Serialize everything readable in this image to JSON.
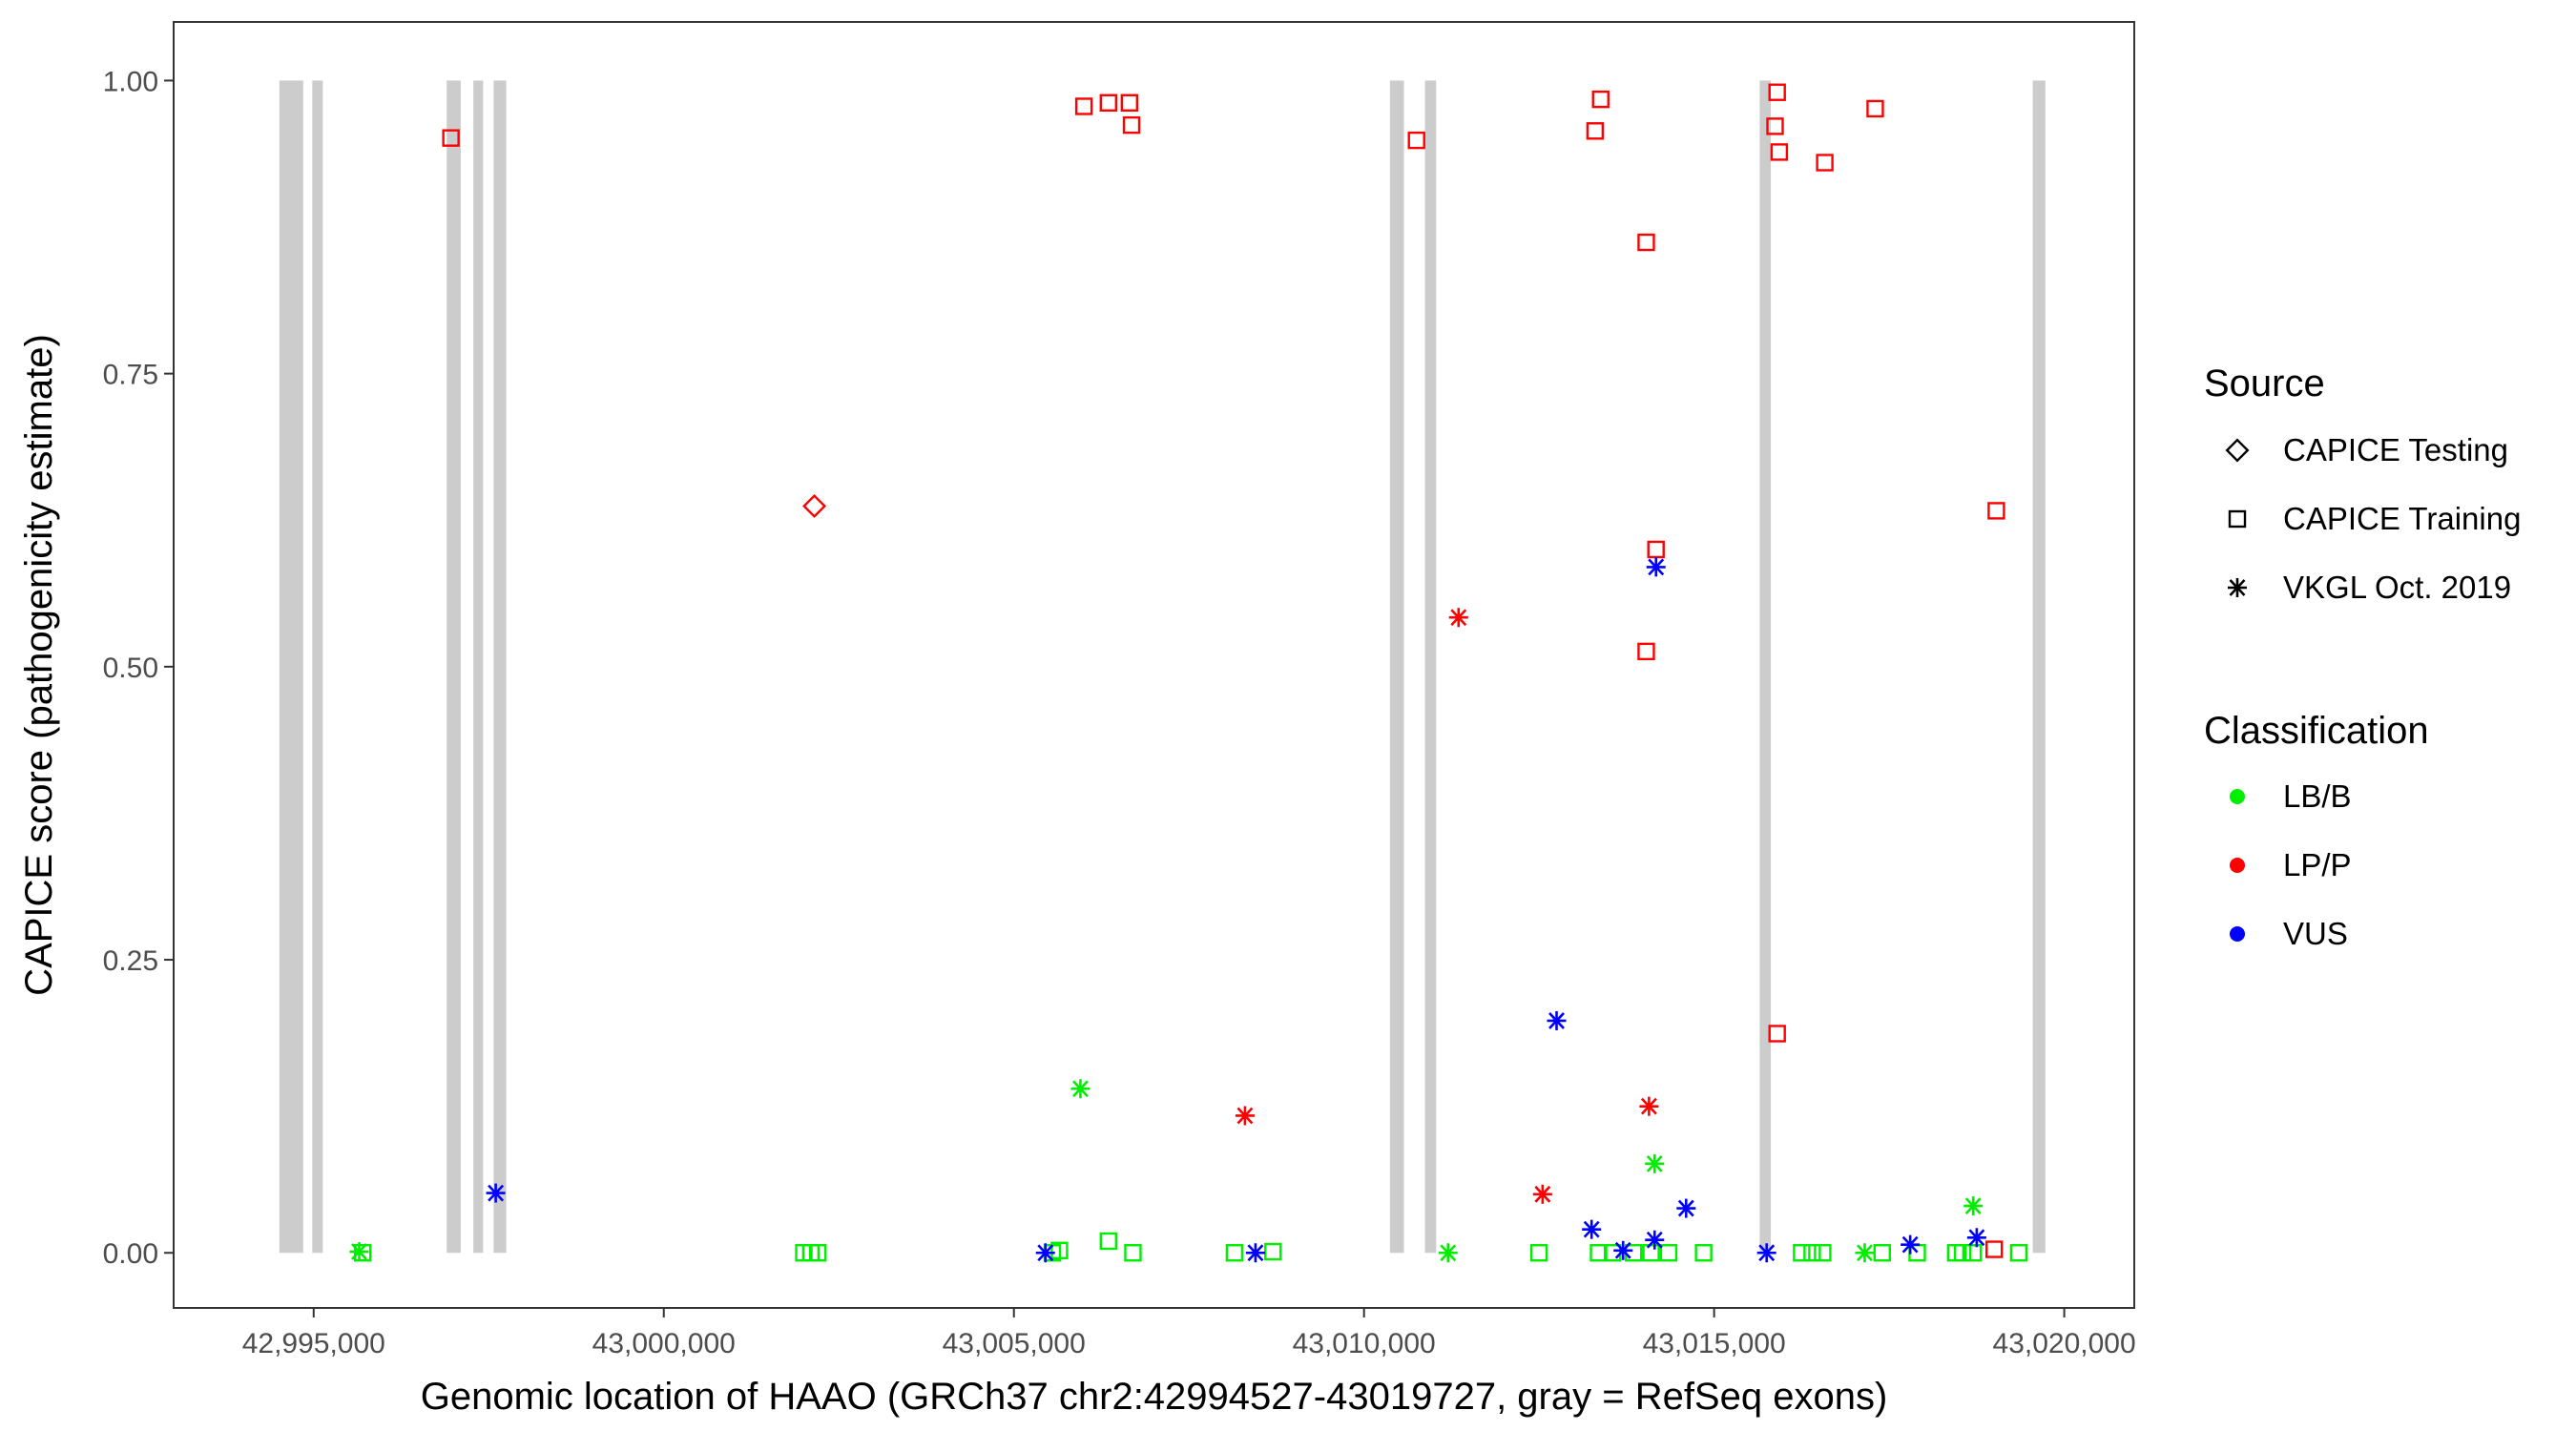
{
  "chart_data": {
    "type": "scatter",
    "title": "",
    "xlabel": "Genomic location of HAAO (GRCh37 chr2:42994527-43019727, gray = RefSeq exons)",
    "ylabel": "CAPICE score (pathogenicity estimate)",
    "xlim": [
      42993000,
      43021000
    ],
    "ylim": [
      -0.047,
      1.05
    ],
    "x_ticks": [
      42995000,
      43000000,
      43005000,
      43010000,
      43015000,
      43020000
    ],
    "x_tick_labels": [
      "42,995,000",
      "43,000,000",
      "43,005,000",
      "43,010,000",
      "43,015,000",
      "43,020,000"
    ],
    "y_ticks": [
      0,
      0.25,
      0.5,
      0.75,
      1.0
    ],
    "y_tick_labels": [
      "0.00",
      "0.25",
      "0.50",
      "0.75",
      "1.00"
    ],
    "grid": false,
    "exon_color": "#cccccc",
    "exons": [
      [
        42994510,
        42994850
      ],
      [
        42994980,
        42995130
      ],
      [
        42996900,
        42997100
      ],
      [
        42997280,
        42997420
      ],
      [
        42997570,
        42997750
      ],
      [
        43010370,
        43010570
      ],
      [
        43010870,
        43011030
      ],
      [
        43015650,
        43015810
      ],
      [
        43019550,
        43019730
      ]
    ],
    "legend": {
      "position": "right",
      "source_title": "Source",
      "source_items": [
        {
          "label": "CAPICE Testing",
          "shape": "diamond"
        },
        {
          "label": "CAPICE Training",
          "shape": "square"
        },
        {
          "label": "VKGL Oct. 2019",
          "shape": "asterisk"
        }
      ],
      "class_title": "Classification",
      "class_items": [
        {
          "label": "LB/B",
          "color": "#00ee00"
        },
        {
          "label": "LP/P",
          "color": "#ff0000"
        },
        {
          "label": "VUS",
          "color": "#0000ff"
        }
      ]
    },
    "colors": {
      "LB/B": "#00ee00",
      "LP/P": "#ff0000",
      "VUS": "#0000ff"
    },
    "points": [
      {
        "x": 43002150,
        "y": 0.637,
        "shape": "diamond",
        "cls": "LP/P"
      },
      {
        "x": 42996960,
        "y": 0.951,
        "shape": "square",
        "cls": "LP/P"
      },
      {
        "x": 43006000,
        "y": 0.978,
        "shape": "square",
        "cls": "LP/P"
      },
      {
        "x": 43006350,
        "y": 0.981,
        "shape": "square",
        "cls": "LP/P"
      },
      {
        "x": 43006650,
        "y": 0.981,
        "shape": "square",
        "cls": "LP/P"
      },
      {
        "x": 43006680,
        "y": 0.962,
        "shape": "square",
        "cls": "LP/P"
      },
      {
        "x": 43010750,
        "y": 0.949,
        "shape": "square",
        "cls": "LP/P"
      },
      {
        "x": 43013300,
        "y": 0.957,
        "shape": "square",
        "cls": "LP/P"
      },
      {
        "x": 43013380,
        "y": 0.984,
        "shape": "square",
        "cls": "LP/P"
      },
      {
        "x": 43014030,
        "y": 0.862,
        "shape": "square",
        "cls": "LP/P"
      },
      {
        "x": 43014170,
        "y": 0.6,
        "shape": "square",
        "cls": "LP/P"
      },
      {
        "x": 43014030,
        "y": 0.513,
        "shape": "square",
        "cls": "LP/P"
      },
      {
        "x": 43015900,
        "y": 0.99,
        "shape": "square",
        "cls": "LP/P"
      },
      {
        "x": 43015870,
        "y": 0.961,
        "shape": "square",
        "cls": "LP/P"
      },
      {
        "x": 43015930,
        "y": 0.939,
        "shape": "square",
        "cls": "LP/P"
      },
      {
        "x": 43016580,
        "y": 0.93,
        "shape": "square",
        "cls": "LP/P"
      },
      {
        "x": 43017300,
        "y": 0.976,
        "shape": "square",
        "cls": "LP/P"
      },
      {
        "x": 43015900,
        "y": 0.187,
        "shape": "square",
        "cls": "LP/P"
      },
      {
        "x": 43019030,
        "y": 0.633,
        "shape": "square",
        "cls": "LP/P"
      },
      {
        "x": 43019000,
        "y": 0.003,
        "shape": "square",
        "cls": "LP/P"
      },
      {
        "x": 42995700,
        "y": 0.0,
        "shape": "square",
        "cls": "LB/B"
      },
      {
        "x": 43002000,
        "y": 0.0,
        "shape": "square",
        "cls": "LB/B"
      },
      {
        "x": 43002100,
        "y": 0.0,
        "shape": "square",
        "cls": "LB/B"
      },
      {
        "x": 43002200,
        "y": 0.0,
        "shape": "square",
        "cls": "LB/B"
      },
      {
        "x": 43005550,
        "y": 0.0,
        "shape": "square",
        "cls": "LB/B"
      },
      {
        "x": 43005650,
        "y": 0.002,
        "shape": "square",
        "cls": "LB/B"
      },
      {
        "x": 43006350,
        "y": 0.01,
        "shape": "square",
        "cls": "LB/B"
      },
      {
        "x": 43006700,
        "y": 0.0,
        "shape": "square",
        "cls": "LB/B"
      },
      {
        "x": 43008150,
        "y": 0.0,
        "shape": "square",
        "cls": "LB/B"
      },
      {
        "x": 43008700,
        "y": 0.001,
        "shape": "square",
        "cls": "LB/B"
      },
      {
        "x": 43012500,
        "y": 0.0,
        "shape": "square",
        "cls": "LB/B"
      },
      {
        "x": 43013350,
        "y": 0.0,
        "shape": "square",
        "cls": "LB/B"
      },
      {
        "x": 43013550,
        "y": 0.0,
        "shape": "square",
        "cls": "LB/B"
      },
      {
        "x": 43013850,
        "y": 0.0,
        "shape": "square",
        "cls": "LB/B"
      },
      {
        "x": 43014100,
        "y": 0.0,
        "shape": "square",
        "cls": "LB/B"
      },
      {
        "x": 43014350,
        "y": 0.0,
        "shape": "square",
        "cls": "LB/B"
      },
      {
        "x": 43014850,
        "y": 0.0,
        "shape": "square",
        "cls": "LB/B"
      },
      {
        "x": 43016250,
        "y": 0.0,
        "shape": "square",
        "cls": "LB/B"
      },
      {
        "x": 43016400,
        "y": 0.0,
        "shape": "square",
        "cls": "LB/B"
      },
      {
        "x": 43016550,
        "y": 0.0,
        "shape": "square",
        "cls": "LB/B"
      },
      {
        "x": 43017400,
        "y": 0.0,
        "shape": "square",
        "cls": "LB/B"
      },
      {
        "x": 43017900,
        "y": 0.0,
        "shape": "square",
        "cls": "LB/B"
      },
      {
        "x": 43018450,
        "y": 0.0,
        "shape": "square",
        "cls": "LB/B"
      },
      {
        "x": 43018550,
        "y": 0.0,
        "shape": "square",
        "cls": "LB/B"
      },
      {
        "x": 43018700,
        "y": 0.0,
        "shape": "square",
        "cls": "LB/B"
      },
      {
        "x": 43019350,
        "y": 0.0,
        "shape": "square",
        "cls": "LB/B"
      },
      {
        "x": 42995650,
        "y": 0.001,
        "shape": "asterisk",
        "cls": "LB/B"
      },
      {
        "x": 43005950,
        "y": 0.14,
        "shape": "asterisk",
        "cls": "LB/B"
      },
      {
        "x": 43011200,
        "y": 0.0,
        "shape": "asterisk",
        "cls": "LB/B"
      },
      {
        "x": 43014150,
        "y": 0.076,
        "shape": "asterisk",
        "cls": "LB/B"
      },
      {
        "x": 43017150,
        "y": 0.0,
        "shape": "asterisk",
        "cls": "LB/B"
      },
      {
        "x": 43018700,
        "y": 0.04,
        "shape": "asterisk",
        "cls": "LB/B"
      },
      {
        "x": 43011350,
        "y": 0.542,
        "shape": "asterisk",
        "cls": "LP/P"
      },
      {
        "x": 43008300,
        "y": 0.117,
        "shape": "asterisk",
        "cls": "LP/P"
      },
      {
        "x": 43012550,
        "y": 0.05,
        "shape": "asterisk",
        "cls": "LP/P"
      },
      {
        "x": 43014070,
        "y": 0.125,
        "shape": "asterisk",
        "cls": "LP/P"
      },
      {
        "x": 42997600,
        "y": 0.051,
        "shape": "asterisk",
        "cls": "VUS"
      },
      {
        "x": 43005450,
        "y": 0.0,
        "shape": "asterisk",
        "cls": "VUS"
      },
      {
        "x": 43008450,
        "y": 0.0,
        "shape": "asterisk",
        "cls": "VUS"
      },
      {
        "x": 43012750,
        "y": 0.198,
        "shape": "asterisk",
        "cls": "VUS"
      },
      {
        "x": 43013250,
        "y": 0.02,
        "shape": "asterisk",
        "cls": "VUS"
      },
      {
        "x": 43013700,
        "y": 0.002,
        "shape": "asterisk",
        "cls": "VUS"
      },
      {
        "x": 43014150,
        "y": 0.011,
        "shape": "asterisk",
        "cls": "VUS"
      },
      {
        "x": 43014170,
        "y": 0.585,
        "shape": "asterisk",
        "cls": "VUS"
      },
      {
        "x": 43014600,
        "y": 0.038,
        "shape": "asterisk",
        "cls": "VUS"
      },
      {
        "x": 43015750,
        "y": 0.0,
        "shape": "asterisk",
        "cls": "VUS"
      },
      {
        "x": 43017800,
        "y": 0.007,
        "shape": "asterisk",
        "cls": "VUS"
      },
      {
        "x": 43018750,
        "y": 0.013,
        "shape": "asterisk",
        "cls": "VUS"
      }
    ]
  }
}
